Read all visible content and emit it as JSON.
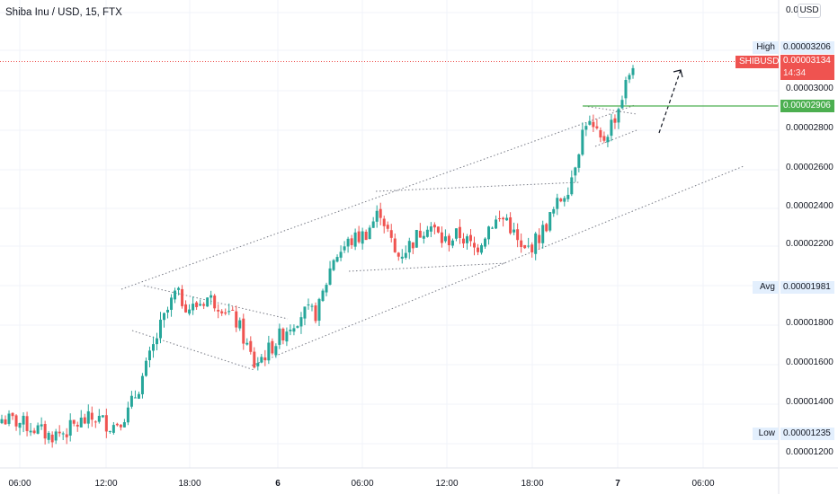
{
  "header": {
    "symbol_title": "Shiba Inu / USD, 15, FTX",
    "currency_button": "USD"
  },
  "price_axis": {
    "labels": [
      "0.00003000",
      "0.00002800",
      "0.00002600",
      "0.00002400",
      "0.00002200",
      "0.00001800",
      "0.00001600",
      "0.00001400"
    ],
    "partial_top": "0.0",
    "partial_top_suffix": "00",
    "partial_bottom": "0.00001200"
  },
  "time_axis": {
    "labels": [
      "06:00",
      "12:00",
      "18:00",
      "6",
      "06:00",
      "12:00",
      "18:00",
      "7",
      "06:00"
    ],
    "bold_labels": [
      "6",
      "7"
    ]
  },
  "markers": {
    "high": {
      "name": "High",
      "value": "0.00003206"
    },
    "current": {
      "name": "SHIBUSD",
      "value": "0.00003134",
      "countdown": "14:34"
    },
    "level": {
      "value": "0.00002906"
    },
    "avg": {
      "name": "Avg",
      "value": "0.00001981"
    },
    "low": {
      "name": "Low",
      "value": "0.00001235"
    }
  },
  "colors": {
    "up": "#26a69a",
    "down": "#ef5350",
    "level_line": "#4caf50",
    "drawing": "#787b86",
    "grid": "#f0f3fa",
    "axis_text": "#131722"
  },
  "chart_data": {
    "type": "candlestick",
    "title": "Shiba Inu / USD, 15, FTX",
    "ylim": [
      1.15e-05,
      3.28e-05
    ],
    "highlighted_levels": {
      "high": 3.206e-05,
      "current": 3.134e-05,
      "horizontal_line": 2.906e-05,
      "average": 1.981e-05,
      "low": 1.235e-05
    },
    "drawn_patterns": [
      "ascending channel",
      "descending channel (bull flag)",
      "consolidation range",
      "rising triangle",
      "projected upward move (dashed arrow)"
    ],
    "close_path": [
      1.325e-05,
      1.31e-05,
      1.28e-05,
      1.24e-05,
      1.26e-05,
      1.31e-05,
      1.33e-05,
      1.29e-05,
      1.36e-05,
      1.55e-05,
      1.78e-05,
      1.96e-05,
      1.88e-05,
      1.94e-05,
      1.9e-05,
      1.8e-05,
      1.6e-05,
      1.68e-05,
      1.78e-05,
      1.86e-05,
      1.86e-05,
      2.14e-05,
      2.22e-05,
      2.26e-05,
      2.38e-05,
      2.14e-05,
      2.22e-05,
      2.32e-05,
      2.22e-05,
      2.26e-05,
      2.18e-05,
      2.32e-05,
      2.34e-05,
      2.16e-05,
      2.24e-05,
      2.38e-05,
      2.52e-05,
      2.84e-05,
      2.72e-05,
      2.88e-05,
      3.13e-05
    ]
  }
}
